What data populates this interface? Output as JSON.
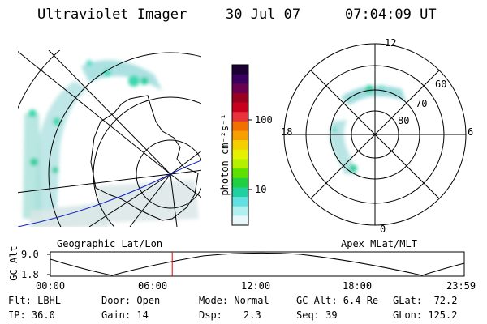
{
  "header": {
    "title": "Ultraviolet Imager",
    "date": "30 Jul 07",
    "time": "07:04:09 UT"
  },
  "colorbar": {
    "unit_label": "photon cm⁻²s⁻¹",
    "ticks": [
      "100",
      "10"
    ],
    "colors": [
      "#1a0033",
      "#3a0060",
      "#6a0050",
      "#9a0020",
      "#c8001e",
      "#e8323c",
      "#f07000",
      "#f5a000",
      "#f5d000",
      "#e6f000",
      "#b4f000",
      "#60e000",
      "#20d040",
      "#20d0a0",
      "#60e0e0",
      "#b0f0f0",
      "#e8f8f8"
    ]
  },
  "geo_map": {
    "label": "Geographic Lat/Lon"
  },
  "polar_map": {
    "label": "Apex MLat/MLT",
    "mlt_labels": {
      "top": "12",
      "left": "18",
      "right": "6",
      "bottom": "0"
    },
    "lat_labels": [
      "60",
      "70",
      "80"
    ]
  },
  "altitude_plot": {
    "axis_label": "GC Alt",
    "y_ticks": [
      "9.0",
      "1.8"
    ],
    "x_ticks": [
      "00:00",
      "06:00",
      "12:00",
      "18:00",
      "23:59"
    ],
    "current_time_hours": 7.07
  },
  "info": {
    "flt": "Flt: LBHL",
    "door": "Door: Open",
    "mode": "Mode: Normal",
    "gc_alt": "GC Alt: 6.4 Re",
    "glat": "GLat: -72.2",
    "ip": "IP: 36.0",
    "gain": "Gain: 14",
    "dsp_label": "Dsp:",
    "dsp_value": "2.3",
    "seq": "Seq: 39",
    "glon": "GLon: 125.2"
  }
}
